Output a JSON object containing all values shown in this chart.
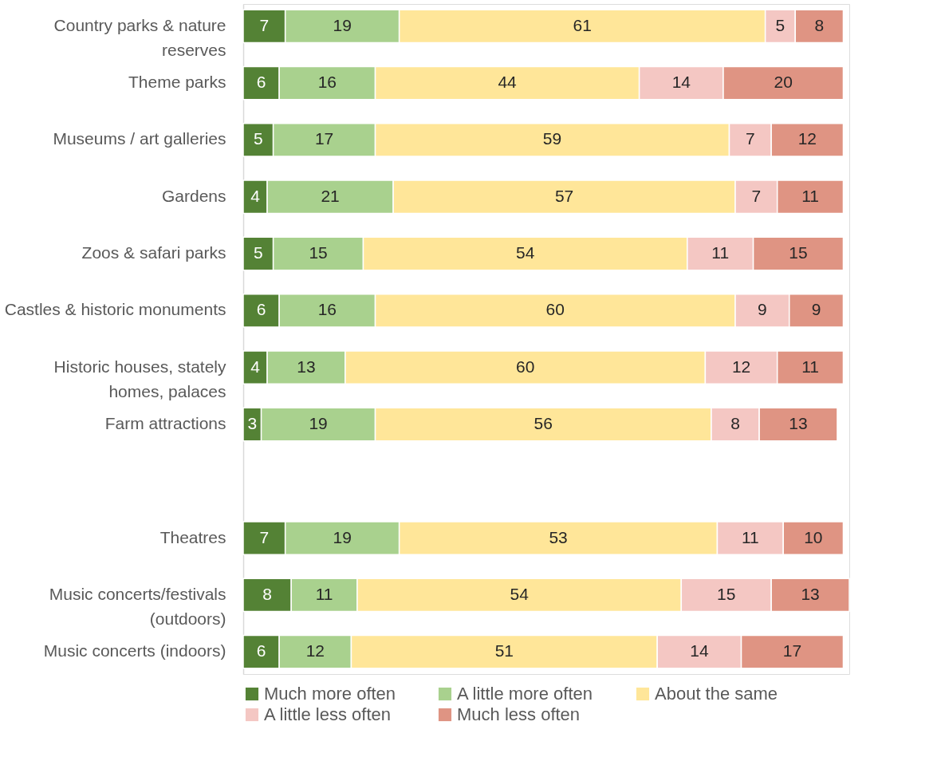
{
  "chart_data": {
    "type": "bar",
    "orientation": "horizontal",
    "stacked": true,
    "data_labels": true,
    "legend": "bottom",
    "grid": false,
    "categories": [
      "Country parks & nature reserves",
      "Theme parks",
      "Museums / art galleries",
      "Gardens",
      "Zoos & safari parks",
      "Castles & historic monuments",
      "Historic houses, stately homes, palaces",
      "Farm attractions",
      null,
      "Theatres",
      "Music concerts/festivals (outdoors)",
      "Music concerts (indoors)"
    ],
    "series": [
      {
        "name": "Much more often",
        "color": "#548235",
        "values": [
          7,
          6,
          5,
          4,
          5,
          6,
          4,
          3,
          null,
          7,
          8,
          6
        ]
      },
      {
        "name": "A little more often",
        "color": "#a9d18e",
        "values": [
          19,
          16,
          17,
          21,
          15,
          16,
          13,
          19,
          null,
          19,
          11,
          12
        ]
      },
      {
        "name": "About the same",
        "color": "#ffe699",
        "values": [
          61,
          44,
          59,
          57,
          54,
          60,
          60,
          56,
          null,
          53,
          54,
          51
        ]
      },
      {
        "name": "A little less often",
        "color": "#f4c7c3",
        "values": [
          5,
          14,
          7,
          7,
          11,
          9,
          12,
          8,
          null,
          11,
          15,
          14
        ]
      },
      {
        "name": "Much less often",
        "color": "#df9483",
        "values": [
          8,
          20,
          12,
          11,
          15,
          9,
          11,
          13,
          null,
          10,
          13,
          17
        ]
      }
    ]
  }
}
